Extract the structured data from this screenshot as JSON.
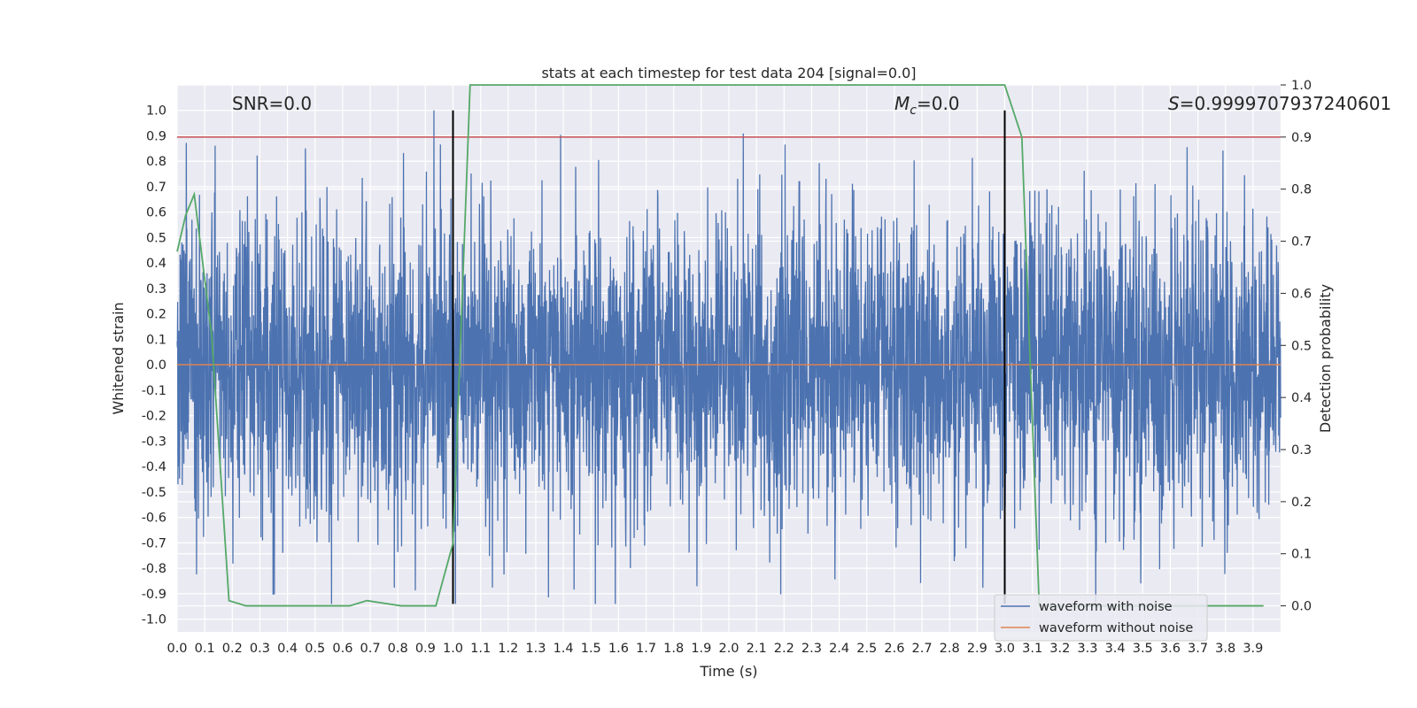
{
  "chart_data": {
    "type": "line",
    "title": "stats at each timestep for test data 204 [signal=0.0]",
    "xlabel": "Time (s)",
    "ylabel_left": "Whitened strain",
    "ylabel_right": "Detection probability",
    "xlim": [
      0.0,
      4.0
    ],
    "ylim_left": [
      -1.05,
      1.1
    ],
    "ylim_right": [
      -0.05,
      1.0
    ],
    "x_ticks": [
      "0.0",
      "0.1",
      "0.2",
      "0.3",
      "0.4",
      "0.5",
      "0.6",
      "0.7",
      "0.8",
      "0.9",
      "1.0",
      "1.1",
      "1.2",
      "1.3",
      "1.4",
      "1.5",
      "1.6",
      "1.7",
      "1.8",
      "1.9",
      "2.0",
      "2.1",
      "2.2",
      "2.3",
      "2.4",
      "2.5",
      "2.6",
      "2.7",
      "2.8",
      "2.9",
      "3.0",
      "3.1",
      "3.2",
      "3.3",
      "3.4",
      "3.5",
      "3.6",
      "3.7",
      "3.8",
      "3.9"
    ],
    "y_ticks_left": [
      "1.0",
      "0.9",
      "0.8",
      "0.7",
      "0.6",
      "0.5",
      "0.4",
      "0.3",
      "0.2",
      "0.1",
      "0.0",
      "-0.1",
      "-0.2",
      "-0.3",
      "-0.4",
      "-0.5",
      "-0.6",
      "-0.7",
      "-0.8",
      "-0.9",
      "-1.0"
    ],
    "y_ticks_right": [
      "1.0",
      "0.9",
      "0.8",
      "0.7",
      "0.6",
      "0.5",
      "0.4",
      "0.3",
      "0.2",
      "0.1",
      "0.0"
    ],
    "grid": true,
    "legend_position": "lower-right",
    "annotations": {
      "snr": "SNR=0.0",
      "mc_symbol": "M",
      "mc_subscript": "c",
      "mc_value": "=0.0",
      "s_symbol": "S",
      "s_value": "=0.9999707937240601"
    },
    "series": [
      {
        "name": "waveform with noise",
        "axis": "left",
        "color": "#4c72b0",
        "style": "noisy trace",
        "samples": 4096,
        "x_range": [
          0.0,
          4.0
        ],
        "amplitude_range": [
          -0.94,
          1.0
        ]
      },
      {
        "name": "waveform without noise",
        "axis": "left",
        "color": "#dd8452",
        "x": [
          0.0,
          4.0
        ],
        "y": [
          0.0,
          0.0
        ]
      },
      {
        "axis": "right",
        "color": "#55a868",
        "x": [
          0.0,
          0.031,
          0.062,
          0.125,
          0.188,
          0.25,
          0.312,
          0.375,
          0.438,
          0.5,
          0.562,
          0.625,
          0.688,
          0.75,
          0.812,
          0.875,
          0.938,
          1.0,
          1.062,
          1.125,
          1.5,
          2.0,
          2.5,
          3.0,
          3.062,
          3.125,
          3.188,
          3.25,
          3.5,
          3.75,
          3.938
        ],
        "y": [
          0.68,
          0.75,
          0.79,
          0.52,
          0.01,
          0.0,
          0.0,
          0.0,
          0.0,
          0.0,
          0.0,
          0.0,
          0.01,
          0.005,
          0.0,
          0.0,
          0.0,
          0.12,
          1.0,
          1.0,
          1.0,
          1.0,
          1.0,
          1.0,
          0.9,
          0.0,
          0.0,
          0.0,
          0.0,
          0.0,
          0.0
        ]
      }
    ],
    "reference_lines": [
      {
        "axis": "right",
        "orientation": "horizontal",
        "value": 0.9,
        "color": "#c44e52"
      },
      {
        "axis": "x",
        "orientation": "vertical",
        "value": 1.0,
        "y_from": -0.94,
        "y_to": 1.0,
        "color": "#000000"
      },
      {
        "axis": "x",
        "orientation": "vertical",
        "value": 3.0,
        "y_from": -0.94,
        "y_to": 1.0,
        "color": "#000000"
      }
    ]
  }
}
